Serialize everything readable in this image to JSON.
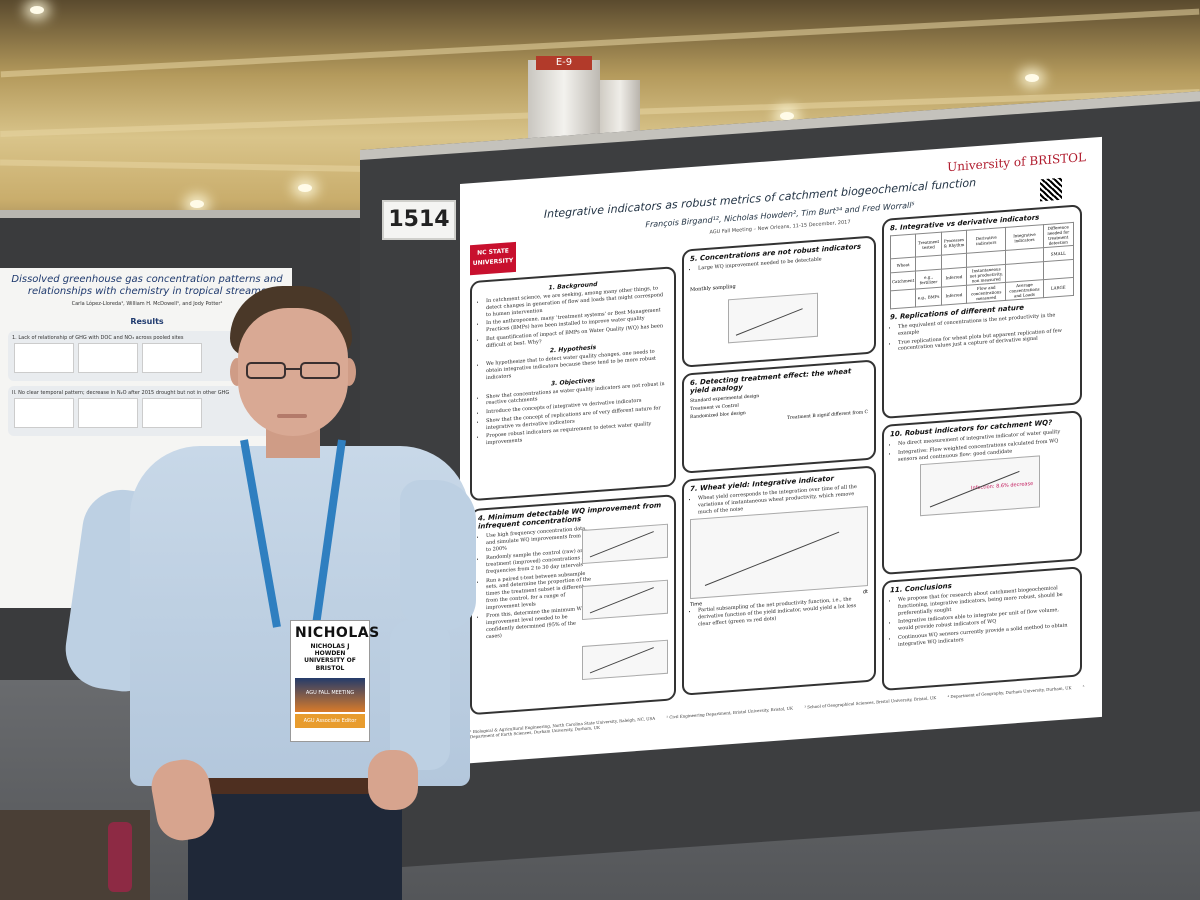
{
  "scene": {
    "column_label": "E-9",
    "board_number": "1514"
  },
  "left_poster": {
    "title": "Dissolved greenhouse gas concentration patterns and relationships with chemistry in tropical streams",
    "authors": "Carla López-Lloreda¹, William H. McDowell¹, and Jody Potter¹",
    "section": "Results",
    "item1": "1. Lack of relationship of GHG with DOC and NO₃ across pooled sites",
    "item2": "II. No clear temporal pattern; decrease in N₂O after 2015 drought but not in other GHG"
  },
  "poster": {
    "logo_left": "NC STATE UNIVERSITY",
    "logo_right": "University of BRISTOL",
    "title": "Integrative indicators as robust metrics of catchment biogeochemical function",
    "authors": "François Birgand¹², Nicholas Howden², Tim Burt³⁴ and Fred Worrall⁵",
    "meeting": "AGU Fall Meeting – New Orleans, 11-15 December, 2017",
    "panels": {
      "background": {
        "heading": "1. Background",
        "items": [
          "In catchment science, we are seeking, among many other things, to detect changes in generation of flow and loads that might correspond to human intervention",
          "In the anthropocene, many 'treatment systems' or Best Management Practices (BMPs) have been installed to improve water quality",
          "But quantification of impact of BMPs on Water Quality (WQ) has been difficult at best. Why?"
        ],
        "hypothesis_heading": "2. Hypothesis",
        "hypothesis": "We hypothesize that to detect water quality changes, one needs to obtain integrative indicators because these tend to be more robust indicators",
        "objectives_heading": "3. Objectives",
        "objectives": [
          "Show that concentrations as water quality indicators are not robust in reactive catchments",
          "Introduce the concepts of integrative vs derivative indicators",
          "Show that the concept of replications are of very different nature for integrative vs derivative indicators",
          "Propose robust indicators as requirement to detect water quality improvements"
        ]
      },
      "minimum": {
        "heading": "4. Minimum detectable WQ improvement from infrequent concentrations",
        "items": [
          "Use high frequency concentration data, and simulate WQ improvements from 1% to 200%",
          "Randomly sample the control (raw) and treatment (improved) concentrations at frequencies from 2 to 30 day intervals",
          "Run a paired t-test between subsample sets, and determine the proportion of the times the treatment subset is different from the control, for a range of improvement levels",
          "From this, determine the minimum WQ improvement level needed to be confidently determined (95% of the cases)"
        ]
      },
      "not_robust": {
        "heading": "5. Concentrations are not robust indicators",
        "items": [
          "Large WQ improvement needed to be detectable"
        ],
        "plot_label": "Monthly sampling"
      },
      "wheat": {
        "heading": "6. Detecting treatment effect: the wheat yield analogy",
        "labels": [
          "Standard experimental design",
          "Treatment vs Control",
          "Randomized bloc design",
          "Treatment B signif different from C"
        ]
      },
      "wheat_yield": {
        "heading": "7. Wheat yield: Integrative indicator",
        "items": [
          "Wheat yield corresponds to the integration over time of all the variations of instantaneous wheat productivity, which remove much of the noise",
          "Partial subsampling of the net productivity function, i.e., the derivative function of the yield indicator, would yield a lot less clear effect (green vs red dots)"
        ],
        "axis_labels": [
          "Time",
          "dt"
        ]
      },
      "integrative": {
        "heading": "8. Integrative vs derivative indicators",
        "table": [
          [
            "",
            "Treatment tested",
            "Processes & Rhythm",
            "Derivative indicators",
            "Integrative indicators",
            "Difference needed for treatment detection"
          ],
          [
            "Wheat",
            "",
            "",
            "",
            "",
            "SMALL"
          ],
          [
            "Catchment",
            "e.g., fertilizer",
            "Inferred",
            "Instantaneous net productivity, non measured",
            "",
            ""
          ],
          [
            "",
            "e.g., BMPs",
            "Inferred",
            "Flow and concentrations measured",
            "Average concentrations and Loads",
            "LARGE"
          ]
        ],
        "replications_heading": "9. Replications of different nature",
        "replications": [
          "The equivalent of concentrations is the net productivity in the example",
          "True replications for wheat plots but apparent replication of few concentration values just a capture of derivative signal"
        ]
      },
      "robust": {
        "heading": "10. Robust indicators for catchment WQ?",
        "items": [
          "No direct measurement of integrative indicator of water quality",
          "Integrative: Flow weighted concentrations calculated from WQ sensors and continuous flow: good candidate"
        ],
        "plot_label": "Infection: 8.6% decrease"
      },
      "conclusions": {
        "heading": "11. Conclusions",
        "items": [
          "We propose that for research about catchment biogeochemical functioning, integrative indicators, being more robust, should be preferentially sought",
          "Integrative indicators able to integrate per unit of flow volume, would provide robust indicators of WQ",
          "Continuous WQ sensors currently provide a solid method to obtain integrative WQ indicators"
        ]
      }
    },
    "footer": [
      "¹ Biological & Agricultural Engineering, North Carolina State University, Raleigh, NC, USA",
      "² Civil Engineering Department, Bristol University, Bristol, UK",
      "³ School of Geographical Sciences, Bristol University, Bristol, UK",
      "⁴ Department of Geography, Durham University, Durham, UK",
      "⁵ Department of Earth Sciences, Durham University, Durham, UK"
    ]
  },
  "badge": {
    "name": "NICHOLAS",
    "full": "NICHOLAS J HOWDEN UNIVERSITY OF BRISTOL",
    "event": "AGU FALL MEETING",
    "role": "AGU Associate Editor"
  },
  "lanyard_text": "AGU FALL MEETING"
}
